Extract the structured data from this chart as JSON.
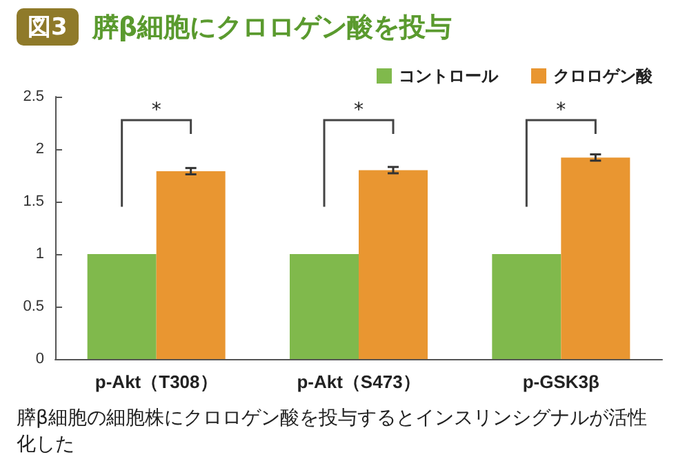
{
  "chart_data": {
    "type": "bar",
    "title": "膵β細胞にクロロゲン酸を投与",
    "categories": [
      "p-Akt（T308）",
      "p-Akt（S473）",
      "p-GSK3β"
    ],
    "series": [
      {
        "name": "コントロール",
        "color": "#80b94c",
        "values": [
          1,
          1,
          1
        ]
      },
      {
        "name": "クロロゲン酸",
        "color": "#e99631",
        "values": [
          1.79,
          1.8,
          1.92
        ],
        "errors": [
          0.03,
          0.03,
          0.03
        ]
      }
    ],
    "ylim": [
      0,
      2.5
    ],
    "yticks": [
      0,
      0.5,
      1,
      1.5,
      2,
      2.5
    ],
    "grid": false,
    "legend": "top right",
    "annotations": [
      "図3",
      "膵β細胞の細胞株にクロロゲン酸を投与するとインスリンシグナルが活性化した",
      "*",
      "*",
      "*"
    ]
  }
}
